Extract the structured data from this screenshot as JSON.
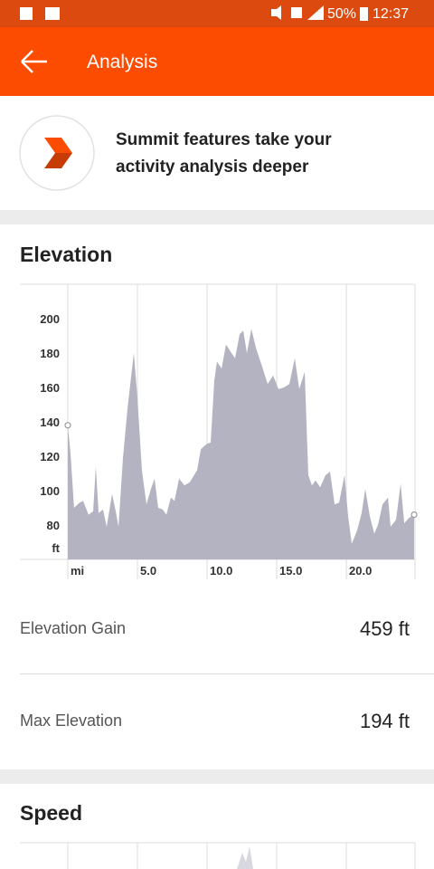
{
  "status_bar": {
    "battery": "50%",
    "time": "12:37"
  },
  "app_bar": {
    "title": "Analysis"
  },
  "banner": {
    "lines": [
      "Summit features take your",
      "activity analysis deeper"
    ]
  },
  "elevation": {
    "heading": "Elevation",
    "stats": [
      {
        "label": "Elevation Gain",
        "value": "459 ft"
      },
      {
        "label": "Max Elevation",
        "value": "194 ft"
      }
    ]
  },
  "speed": {
    "heading": "Speed"
  },
  "chart_data": {
    "type": "area",
    "color": "#b4b3c2",
    "y_unit": "ft",
    "x": [
      0,
      0.19,
      0.45,
      0.84,
      1.1,
      1.49,
      1.82,
      2.01,
      2.21,
      2.53,
      2.79,
      3.18,
      3.44,
      3.64,
      3.96,
      4.29,
      4.74,
      5.0,
      5.32,
      5.65,
      5.97,
      6.23,
      6.49,
      6.82,
      7.08,
      7.4,
      7.66,
      7.99,
      8.38,
      8.77,
      9.29,
      9.55,
      9.94,
      10.26,
      10.52,
      10.71,
      11.04,
      11.36,
      11.75,
      12.01,
      12.34,
      12.6,
      12.86,
      13.18,
      13.51,
      13.96,
      14.35,
      14.74,
      15.13,
      15.52,
      15.91,
      16.3,
      16.62,
      17.01,
      17.27,
      17.53,
      17.79,
      18.12,
      18.51,
      18.83,
      19.16,
      19.48,
      19.87,
      20.13,
      20.39,
      20.78,
      21.1,
      21.36,
      21.69,
      22.01,
      22.27,
      22.6,
      22.99,
      23.18,
      23.57,
      23.9,
      24.16,
      24.48,
      24.87
    ],
    "values": [
      138,
      122,
      90,
      93,
      94,
      86,
      88,
      114,
      87,
      89,
      79,
      98,
      88,
      79,
      119,
      148,
      180,
      154,
      112,
      92,
      101,
      107,
      90,
      89,
      86,
      96,
      94,
      107,
      103,
      105,
      112,
      124,
      127,
      128,
      164,
      175,
      171,
      185,
      180,
      177,
      191,
      193,
      180,
      194,
      183,
      172,
      162,
      167,
      159,
      160,
      162,
      177,
      159,
      169,
      109,
      103,
      106,
      102,
      109,
      111,
      92,
      93,
      109,
      85,
      69,
      77,
      87,
      101,
      85,
      75,
      80,
      92,
      96,
      79,
      83,
      104,
      81,
      84,
      86
    ],
    "xlim": [
      0,
      24.9
    ],
    "ylim": [
      60,
      220
    ],
    "xticks": [
      {
        "value": 0,
        "label": "mi"
      },
      {
        "value": 5,
        "label": "5.0"
      },
      {
        "value": 10,
        "label": "10.0"
      },
      {
        "value": 15,
        "label": "15.0"
      },
      {
        "value": 20,
        "label": "20.0"
      }
    ],
    "yticks": [
      80,
      100,
      120,
      140,
      160,
      180,
      200
    ]
  }
}
